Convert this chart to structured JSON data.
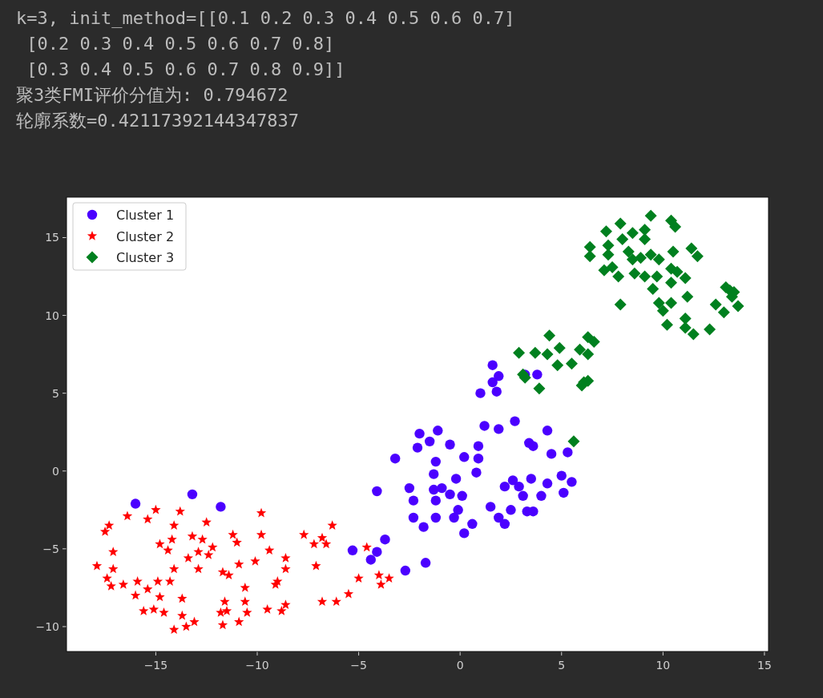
{
  "chart_data": {
    "type": "scatter",
    "annotations": [
      "k=3, init_method=[[0.1 0.2 0.3 0.4 0.5 0.6 0.7]",
      " [0.2 0.3 0.4 0.5 0.6 0.7 0.8]",
      " [0.3 0.4 0.5 0.6 0.7 0.8 0.9]]",
      "聚3类FMI评价分值为: 0.794672",
      "轮廓系数=0.42117392144347837"
    ],
    "xlim": [
      -19.4,
      15.2
    ],
    "ylim": [
      -11.6,
      17.6
    ],
    "xticks": [
      -15,
      -10,
      -5,
      0,
      5,
      10,
      15
    ],
    "yticks": [
      -10,
      -5,
      0,
      5,
      10,
      15
    ],
    "grid": false,
    "legend": "top left",
    "series": [
      {
        "name": "Cluster 1",
        "color": "#4b00ff",
        "marker": "circle",
        "x": [
          -16.0,
          -13.2,
          -11.8,
          -4.1,
          -3.2,
          -5.3,
          -4.4,
          -4.1,
          -3.7,
          -2.7,
          -1.7,
          -2.5,
          -2.3,
          -2.3,
          -1.8,
          -2.1,
          -2.0,
          -1.5,
          -1.1,
          -1.2,
          -1.3,
          -1.2,
          -1.2,
          -1.3,
          -0.9,
          -0.5,
          -0.5,
          -0.3,
          -0.2,
          -0.1,
          0.1,
          0.2,
          0.2,
          0.6,
          0.8,
          0.9,
          0.9,
          1.2,
          1.5,
          1.0,
          1.6,
          1.6,
          1.9,
          1.8,
          1.9,
          1.9,
          2.2,
          2.2,
          2.6,
          2.5,
          2.7,
          2.9,
          3.1,
          3.2,
          3.4,
          3.6,
          3.3,
          3.6,
          3.5,
          3.8,
          4.0,
          4.3,
          4.3,
          4.5,
          5.0,
          5.1,
          5.3,
          5.5
        ],
        "values": [
          -2.1,
          -1.5,
          -2.3,
          -1.3,
          0.8,
          -5.1,
          -5.7,
          -5.2,
          -4.4,
          -6.4,
          -5.9,
          -1.1,
          -1.9,
          -3.0,
          -3.6,
          1.5,
          2.4,
          1.9,
          2.6,
          0.6,
          -0.2,
          -1.9,
          -3.0,
          -1.2,
          -1.1,
          1.7,
          -1.5,
          -3.0,
          -0.5,
          -2.5,
          -1.6,
          -4.0,
          0.9,
          -3.4,
          -0.1,
          1.6,
          0.8,
          2.9,
          -2.3,
          5.0,
          6.8,
          5.7,
          6.1,
          5.1,
          2.7,
          -3.0,
          -1.0,
          -3.4,
          -0.6,
          -2.5,
          3.2,
          -1.0,
          -1.6,
          6.2,
          1.8,
          1.6,
          -2.6,
          -2.6,
          -0.5,
          6.2,
          -1.6,
          -0.8,
          2.6,
          1.1,
          -0.3,
          -1.4,
          1.2,
          -0.7
        ]
      },
      {
        "name": "Cluster 2",
        "color": "#ff0000",
        "marker": "star",
        "x": [
          -16.4,
          -15.0,
          -15.4,
          -13.8,
          -12.5,
          -9.8,
          -17.5,
          -17.3,
          -17.1,
          -17.9,
          -17.1,
          -17.4,
          -17.2,
          -16.6,
          -16.0,
          -15.9,
          -15.6,
          -15.1,
          -15.4,
          -14.9,
          -14.8,
          -14.4,
          -14.1,
          -14.2,
          -14.3,
          -14.1,
          -14.8,
          -14.6,
          -13.7,
          -13.7,
          -13.5,
          -14.1,
          -13.1,
          -13.4,
          -13.2,
          -12.9,
          -12.7,
          -12.9,
          -12.4,
          -12.2,
          -11.2,
          -11.0,
          -10.9,
          -11.7,
          -11.4,
          -11.6,
          -11.8,
          -11.5,
          -11.7,
          -10.9,
          -10.6,
          -10.6,
          -10.5,
          -10.1,
          -9.8,
          -9.4,
          -8.6,
          -8.6,
          -9.0,
          -9.1,
          -8.6,
          -8.8,
          -9.5,
          -7.7,
          -7.2,
          -6.8,
          -6.6,
          -6.3,
          -7.1,
          -6.8,
          -6.1,
          -5.5,
          -5.0,
          -4.6,
          -4.0,
          -3.9,
          -3.5
        ],
        "values": [
          -2.9,
          -2.5,
          -3.1,
          -2.6,
          -3.3,
          -2.7,
          -3.9,
          -3.5,
          -5.2,
          -6.1,
          -6.3,
          -6.9,
          -7.4,
          -7.3,
          -8.0,
          -7.1,
          -9.0,
          -8.9,
          -7.6,
          -7.1,
          -4.7,
          -5.1,
          -3.5,
          -4.4,
          -7.1,
          -6.3,
          -8.1,
          -9.1,
          -8.2,
          -9.3,
          -10.0,
          -10.2,
          -9.7,
          -5.6,
          -4.2,
          -5.2,
          -4.4,
          -6.3,
          -5.4,
          -4.9,
          -4.1,
          -4.6,
          -6.0,
          -6.5,
          -6.7,
          -8.4,
          -9.1,
          -9.0,
          -9.9,
          -9.7,
          -7.5,
          -8.4,
          -9.1,
          -5.8,
          -4.1,
          -5.1,
          -5.6,
          -6.3,
          -7.1,
          -7.3,
          -8.6,
          -9.0,
          -8.9,
          -4.1,
          -4.7,
          -4.3,
          -4.7,
          -3.5,
          -6.1,
          -8.4,
          -8.4,
          -7.9,
          -6.9,
          -4.9,
          -6.7,
          -7.3,
          -6.9
        ]
      },
      {
        "name": "Cluster 3",
        "color": "#00801f",
        "marker": "diamond",
        "x": [
          2.9,
          3.1,
          3.2,
          3.7,
          3.9,
          4.3,
          4.4,
          4.8,
          4.9,
          5.5,
          5.9,
          6.0,
          6.1,
          6.3,
          6.3,
          6.3,
          6.6,
          5.6,
          6.4,
          6.4,
          7.2,
          7.3,
          7.3,
          7.1,
          7.5,
          7.8,
          7.9,
          8.0,
          7.9,
          8.3,
          8.5,
          8.5,
          8.6,
          8.9,
          9.1,
          9.1,
          9.1,
          9.4,
          9.4,
          9.5,
          9.7,
          9.8,
          9.8,
          10.0,
          10.2,
          10.4,
          10.4,
          10.4,
          10.6,
          10.4,
          10.5,
          10.7,
          11.1,
          11.1,
          11.2,
          11.1,
          11.4,
          11.5,
          11.7,
          12.3,
          12.6,
          13.0,
          13.1,
          13.3,
          13.4,
          13.5,
          13.7
        ],
        "values": [
          7.6,
          6.2,
          6.0,
          7.6,
          5.3,
          7.5,
          8.7,
          6.8,
          7.9,
          6.9,
          7.8,
          5.5,
          5.7,
          5.8,
          8.6,
          7.5,
          8.3,
          1.9,
          14.4,
          13.8,
          15.4,
          14.5,
          13.9,
          12.9,
          13.1,
          12.5,
          15.9,
          14.9,
          10.7,
          14.1,
          15.3,
          13.6,
          12.7,
          13.7,
          15.5,
          14.9,
          12.5,
          16.4,
          13.9,
          11.7,
          12.5,
          10.8,
          13.6,
          10.3,
          9.4,
          16.1,
          13.0,
          12.1,
          15.7,
          10.8,
          14.1,
          12.8,
          12.4,
          9.8,
          11.2,
          9.2,
          14.3,
          8.8,
          13.8,
          9.1,
          10.7,
          10.2,
          11.8,
          11.6,
          11.2,
          11.5,
          10.6
        ]
      }
    ]
  }
}
